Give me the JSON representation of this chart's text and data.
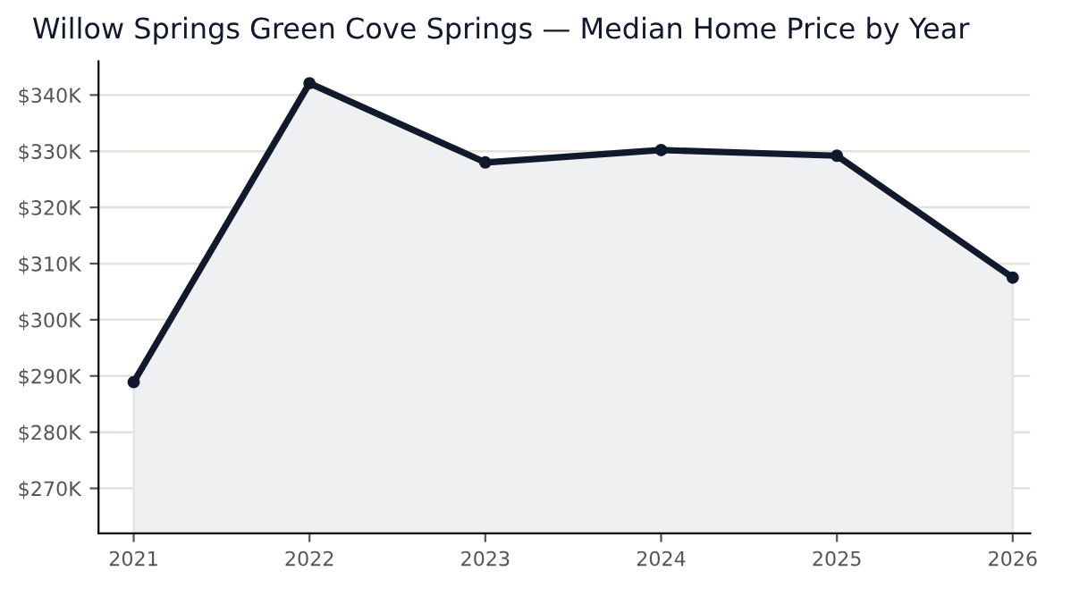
{
  "chart_data": {
    "type": "area",
    "title": "Willow Springs Green Cove Springs — Median Home Price by Year",
    "x": [
      2021,
      2022,
      2023,
      2024,
      2025,
      2026
    ],
    "series": [
      {
        "color": "#111a2c",
        "values": [
          288900,
          342100,
          328000,
          330200,
          329200,
          307500
        ]
      }
    ],
    "xlim": [
      2020.8,
      2026.1
    ],
    "xticks": [
      2021,
      2022,
      2023,
      2024,
      2025,
      2026
    ],
    "ylim": [
      262000,
      346000
    ],
    "yticks": [
      {
        "value": 270000,
        "label": "$270K"
      },
      {
        "value": 280000,
        "label": "$280K"
      },
      {
        "value": 290000,
        "label": "$290K"
      },
      {
        "value": 300000,
        "label": "$300K"
      },
      {
        "value": 310000,
        "label": "$310K"
      },
      {
        "value": 320000,
        "label": "$320K"
      },
      {
        "value": 330000,
        "label": "$330K"
      },
      {
        "value": 340000,
        "label": "$340K"
      }
    ],
    "grid": "y",
    "marker": "circle",
    "line_style": "solid",
    "legend": false
  }
}
